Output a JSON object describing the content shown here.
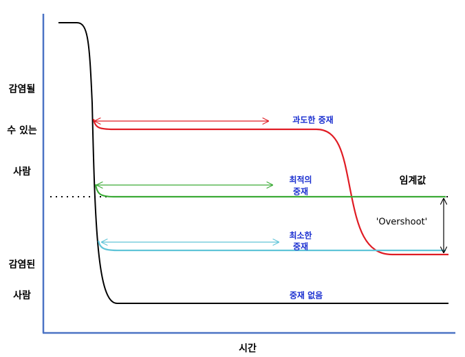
{
  "y_label_top": [
    "감염될",
    "수 있는",
    "사람"
  ],
  "y_label_bottom": [
    "감염된",
    "사람"
  ],
  "x_label": "시간",
  "curves": {
    "excessive": "과도한 중재",
    "optimal": [
      "최적의",
      "중재"
    ],
    "minimal": [
      "최소한",
      "중재"
    ],
    "none": "중재 없음"
  },
  "threshold": "임계값",
  "overshoot": "'Overshoot'"
}
